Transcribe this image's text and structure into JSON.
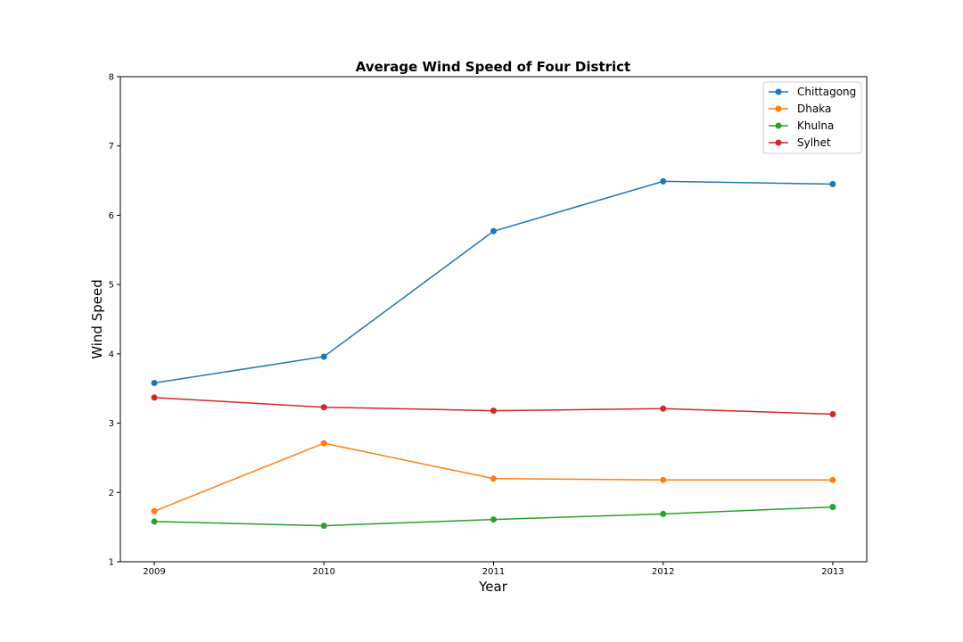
{
  "chart_data": {
    "type": "line",
    "title": "Average Wind Speed of Four District",
    "xlabel": "Year",
    "ylabel": "Wind Speed",
    "x": [
      2009,
      2010,
      2011,
      2012,
      2013
    ],
    "x_tick_labels": [
      "2009",
      "2010",
      "2011",
      "2012",
      "2013"
    ],
    "y_tick_labels": [
      "1",
      "2",
      "3",
      "4",
      "5",
      "6",
      "7",
      "8"
    ],
    "xlim": [
      2008.8,
      2013.2
    ],
    "ylim": [
      1,
      8
    ],
    "grid": false,
    "legend_position": "top-right",
    "series": [
      {
        "name": "Chittagong",
        "color": "#1f77b4",
        "marker": "circle",
        "values": [
          3.58,
          3.96,
          5.77,
          6.49,
          6.45
        ]
      },
      {
        "name": "Dhaka",
        "color": "#ff7f0e",
        "marker": "circle",
        "values": [
          1.73,
          2.71,
          2.2,
          2.18,
          2.18
        ]
      },
      {
        "name": "Khulna",
        "color": "#2ca02c",
        "marker": "circle",
        "values": [
          1.58,
          1.52,
          1.61,
          1.69,
          1.79
        ]
      },
      {
        "name": "Sylhet",
        "color": "#d62728",
        "marker": "circle",
        "values": [
          3.37,
          3.23,
          3.18,
          3.21,
          3.13
        ]
      }
    ]
  }
}
